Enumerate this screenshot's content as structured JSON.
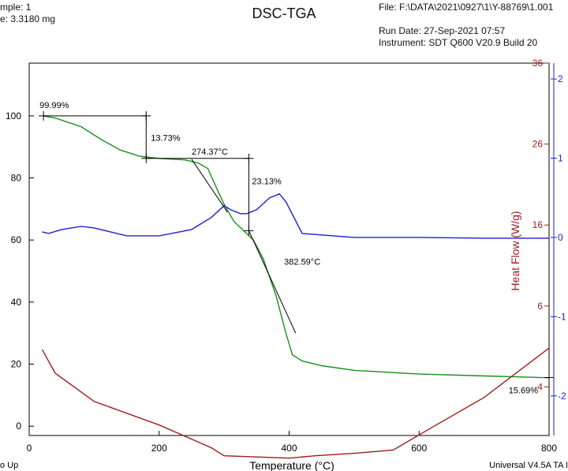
{
  "header": {
    "sample": "mple: 1",
    "size": "e: 3.3180 mg",
    "file": "File: F:\\DATA\\2021\\0927\\1\\Y-88769\\1.001",
    "run_date": "Run Date: 27-Sep-2021 07:57",
    "instrument": "Instrument: SDT Q600 V20.9 Build 20"
  },
  "footer": {
    "left": "o Up",
    "right": "Universal V4.5A TA I"
  },
  "colors": {
    "weight": "#1a8f1a",
    "heat_flow": "#1f1fd8",
    "deriv": "#a01c1c",
    "annotation": "#000000"
  },
  "chart_data": {
    "type": "line",
    "title": "DSC-TGA",
    "xlabel": "Temperature (°C)",
    "xlim": [
      0,
      800
    ],
    "x_ticks": [
      0,
      200,
      400,
      600,
      800
    ],
    "grid": false,
    "axes": {
      "left": {
        "range": [
          -3,
          117
        ],
        "ticks": [
          0,
          20,
          40,
          60,
          80,
          100
        ],
        "label": ""
      },
      "right_red": {
        "label": "Heat Flow (W/g)",
        "range": [
          -10,
          36
        ],
        "ticks": [
          -4,
          6,
          16,
          26,
          36
        ]
      },
      "right_blue": {
        "range": [
          -2.5,
          2.2
        ],
        "ticks": [
          -2,
          -1,
          0,
          1,
          2
        ]
      }
    },
    "series": [
      {
        "axis": "left",
        "color_key": "weight",
        "points": [
          [
            22,
            100
          ],
          [
            40,
            99.3
          ],
          [
            80,
            96.5
          ],
          [
            110,
            92.5
          ],
          [
            140,
            89
          ],
          [
            170,
            87
          ],
          [
            200,
            86.3
          ],
          [
            240,
            85.8
          ],
          [
            260,
            84.8
          ],
          [
            275,
            83
          ],
          [
            290,
            76
          ],
          [
            300,
            71.5
          ],
          [
            315,
            66
          ],
          [
            330,
            63
          ],
          [
            345,
            60
          ],
          [
            360,
            54
          ],
          [
            380,
            42
          ],
          [
            395,
            30
          ],
          [
            405,
            23
          ],
          [
            420,
            21
          ],
          [
            450,
            19.5
          ],
          [
            500,
            18
          ],
          [
            600,
            16.8
          ],
          [
            700,
            16.2
          ],
          [
            800,
            15.6
          ]
        ]
      },
      {
        "axis": "right_blue",
        "color_key": "heat_flow",
        "points": [
          [
            20,
            0.07
          ],
          [
            30,
            0.05
          ],
          [
            50,
            0.1
          ],
          [
            80,
            0.14
          ],
          [
            100,
            0.12
          ],
          [
            150,
            0.02
          ],
          [
            200,
            0.02
          ],
          [
            250,
            0.1
          ],
          [
            280,
            0.25
          ],
          [
            300,
            0.4
          ],
          [
            310,
            0.35
          ],
          [
            325,
            0.3
          ],
          [
            335,
            0.3
          ],
          [
            350,
            0.35
          ],
          [
            370,
            0.5
          ],
          [
            385,
            0.55
          ],
          [
            395,
            0.45
          ],
          [
            420,
            0.05
          ],
          [
            500,
            0
          ],
          [
            600,
            0
          ],
          [
            700,
            -0.01
          ],
          [
            800,
            -0.01
          ]
        ]
      },
      {
        "axis": "right_red",
        "color_key": "deriv",
        "points": [
          [
            20,
            0.6
          ],
          [
            40,
            -2.3
          ],
          [
            100,
            -5.8
          ],
          [
            200,
            -8.7
          ],
          [
            280,
            -11.5
          ],
          [
            300,
            -12.5
          ],
          [
            400,
            -12.8
          ],
          [
            440,
            -12.5
          ],
          [
            500,
            -12.2
          ],
          [
            560,
            -11.8
          ],
          [
            620,
            -9
          ],
          [
            700,
            -5.3
          ],
          [
            800,
            0.8
          ]
        ]
      }
    ],
    "annotations": [
      {
        "text": "99.99%",
        "x": 22,
        "y": 100
      },
      {
        "text": "13.73%",
        "x": 180,
        "y": 93
      },
      {
        "text": "274.37°C",
        "x": 274.37,
        "y": 86.3
      },
      {
        "text": "23.13%",
        "x": 338,
        "y": 76
      },
      {
        "text": "382.59°C",
        "x": 382.59,
        "y": 52
      },
      {
        "text": "15.69%",
        "x": 800,
        "y": 15.69
      }
    ]
  }
}
